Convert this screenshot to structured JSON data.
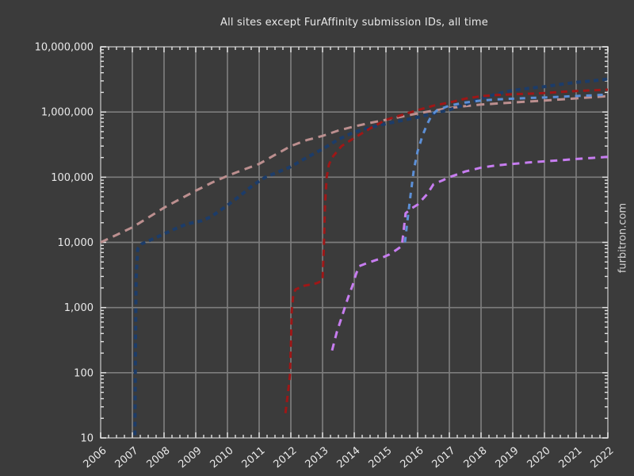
{
  "title": "All sites except FurAffinity submission IDs, all time",
  "watermark": "furbitron.com",
  "colors": {
    "background": "#3b3b3b",
    "grid": "#7d7d7d",
    "spine": "#969696",
    "tick": "#e4e4e4",
    "text": "#e9e9e9",
    "watermark": "#d2d2d2"
  },
  "chart_data": {
    "type": "line",
    "title": "All sites except FurAffinity submission IDs, all time",
    "xlabel": "",
    "ylabel": "",
    "grid": true,
    "legend_position": "none",
    "x_scale": "linear",
    "y_scale": "log",
    "xlim": [
      2006,
      2022
    ],
    "ylim": [
      10,
      10000000
    ],
    "x_ticks": [
      {
        "label": "2006",
        "value": 2006
      },
      {
        "label": "2007",
        "value": 2007
      },
      {
        "label": "2008",
        "value": 2008
      },
      {
        "label": "2009",
        "value": 2009
      },
      {
        "label": "2010",
        "value": 2010
      },
      {
        "label": "2011",
        "value": 2011
      },
      {
        "label": "2012",
        "value": 2012
      },
      {
        "label": "2013",
        "value": 2013
      },
      {
        "label": "2014",
        "value": 2014
      },
      {
        "label": "2015",
        "value": 2015
      },
      {
        "label": "2016",
        "value": 2016
      },
      {
        "label": "2017",
        "value": 2017
      },
      {
        "label": "2018",
        "value": 2018
      },
      {
        "label": "2019",
        "value": 2019
      },
      {
        "label": "2020",
        "value": 2020
      },
      {
        "label": "2021",
        "value": 2021
      },
      {
        "label": "2022",
        "value": 2022
      }
    ],
    "y_ticks": [
      {
        "label": "10",
        "value": 10
      },
      {
        "label": "100",
        "value": 100
      },
      {
        "label": "1,000",
        "value": 1000
      },
      {
        "label": "10,000",
        "value": 10000
      },
      {
        "label": "100,000",
        "value": 100000
      },
      {
        "label": "1,000,000",
        "value": 1000000
      },
      {
        "label": "10,000,000",
        "value": 10000000
      }
    ],
    "series": [
      {
        "name": "rosybrown-dashed",
        "color": "#bc8f8f",
        "style": "dashed",
        "dash": "10 7",
        "width": 3,
        "points": [
          [
            2006,
            10000
          ],
          [
            2006.5,
            13000
          ],
          [
            2007,
            17000
          ],
          [
            2007.5,
            24000
          ],
          [
            2008,
            34000
          ],
          [
            2008.5,
            46000
          ],
          [
            2009,
            62000
          ],
          [
            2009.5,
            82000
          ],
          [
            2010,
            105000
          ],
          [
            2010.5,
            130000
          ],
          [
            2011,
            160000
          ],
          [
            2011.5,
            220000
          ],
          [
            2012,
            300000
          ],
          [
            2012.5,
            370000
          ],
          [
            2013,
            430000
          ],
          [
            2013.5,
            520000
          ],
          [
            2014,
            600000
          ],
          [
            2014.5,
            680000
          ],
          [
            2015,
            760000
          ],
          [
            2015.5,
            850000
          ],
          [
            2016,
            950000
          ],
          [
            2016.5,
            1050000
          ],
          [
            2017,
            1150000
          ],
          [
            2017.5,
            1230000
          ],
          [
            2018,
            1300000
          ],
          [
            2019,
            1400000
          ],
          [
            2020,
            1500000
          ],
          [
            2021,
            1620000
          ],
          [
            2022,
            1750000
          ]
        ]
      },
      {
        "name": "darkblue-dashed",
        "color": "#1c3c69",
        "style": "dashed",
        "dash": "6 5",
        "width": 4,
        "points": [
          [
            2007.08,
            11
          ],
          [
            2007.1,
            300
          ],
          [
            2007.12,
            3000
          ],
          [
            2007.17,
            8000
          ],
          [
            2007.3,
            9500
          ],
          [
            2007.6,
            11000
          ],
          [
            2008,
            13500
          ],
          [
            2008.4,
            16500
          ],
          [
            2008.7,
            19000
          ],
          [
            2009,
            20500
          ],
          [
            2009.2,
            21500
          ],
          [
            2009.5,
            25000
          ],
          [
            2010,
            37000
          ],
          [
            2010.4,
            52000
          ],
          [
            2010.8,
            75000
          ],
          [
            2011.2,
            100000
          ],
          [
            2011.6,
            120000
          ],
          [
            2012,
            145000
          ],
          [
            2012.5,
            200000
          ],
          [
            2013,
            270000
          ],
          [
            2013.5,
            380000
          ],
          [
            2014,
            490000
          ],
          [
            2014.5,
            580000
          ],
          [
            2015,
            660000
          ],
          [
            2015.5,
            740000
          ],
          [
            2016,
            830000
          ],
          [
            2016.5,
            950000
          ],
          [
            2017,
            1080000
          ],
          [
            2017.5,
            1300000
          ],
          [
            2018,
            1600000
          ],
          [
            2018.5,
            1900000
          ],
          [
            2019,
            2150000
          ],
          [
            2019.5,
            2300000
          ],
          [
            2020,
            2450000
          ],
          [
            2020.5,
            2650000
          ],
          [
            2021,
            2850000
          ],
          [
            2021.5,
            3000000
          ],
          [
            2022,
            3200000
          ]
        ]
      },
      {
        "name": "darkred-dashed",
        "color": "#9e1717",
        "style": "dashed",
        "dash": "8 6",
        "width": 3,
        "points": [
          [
            2011.83,
            24
          ],
          [
            2011.9,
            45
          ],
          [
            2011.97,
            90
          ],
          [
            2012.0,
            250
          ],
          [
            2012.03,
            900
          ],
          [
            2012.08,
            1600
          ],
          [
            2012.15,
            1900
          ],
          [
            2012.4,
            2150
          ],
          [
            2012.8,
            2350
          ],
          [
            2013.0,
            2600
          ],
          [
            2013.04,
            8000
          ],
          [
            2013.08,
            40000
          ],
          [
            2013.13,
            100000
          ],
          [
            2013.2,
            155000
          ],
          [
            2013.3,
            200000
          ],
          [
            2013.6,
            300000
          ],
          [
            2014,
            400000
          ],
          [
            2014.5,
            560000
          ],
          [
            2015,
            760000
          ],
          [
            2015.5,
            900000
          ],
          [
            2016,
            1070000
          ],
          [
            2016.5,
            1250000
          ],
          [
            2017,
            1400000
          ],
          [
            2017.5,
            1600000
          ],
          [
            2018,
            1750000
          ],
          [
            2018.5,
            1820000
          ],
          [
            2019,
            1870000
          ],
          [
            2019.5,
            1910000
          ],
          [
            2020,
            1950000
          ],
          [
            2020.5,
            2030000
          ],
          [
            2021,
            2100000
          ],
          [
            2021.5,
            2150000
          ],
          [
            2022,
            2200000
          ]
        ]
      },
      {
        "name": "cornflower-dashed",
        "color": "#5c8fd6",
        "style": "dashed",
        "dash": "7 7",
        "width": 3,
        "points": [
          [
            2015.6,
            10000
          ],
          [
            2015.68,
            22000
          ],
          [
            2015.78,
            55000
          ],
          [
            2015.88,
            130000
          ],
          [
            2016.0,
            250000
          ],
          [
            2016.15,
            430000
          ],
          [
            2016.3,
            650000
          ],
          [
            2016.45,
            900000
          ],
          [
            2016.6,
            1050000
          ],
          [
            2016.8,
            1150000
          ],
          [
            2017,
            1250000
          ],
          [
            2017.5,
            1400000
          ],
          [
            2018,
            1500000
          ],
          [
            2018.5,
            1560000
          ],
          [
            2019,
            1600000
          ],
          [
            2019.5,
            1640000
          ],
          [
            2020,
            1670000
          ],
          [
            2020.5,
            1710000
          ],
          [
            2021,
            1760000
          ],
          [
            2021.5,
            1800000
          ],
          [
            2022,
            1850000
          ]
        ]
      },
      {
        "name": "violet-dashed",
        "color": "#c77df0",
        "style": "dashed",
        "dash": "9 7",
        "width": 3,
        "points": [
          [
            2013.3,
            220
          ],
          [
            2013.45,
            420
          ],
          [
            2013.6,
            700
          ],
          [
            2013.8,
            1400
          ],
          [
            2013.95,
            2200
          ],
          [
            2014.05,
            3200
          ],
          [
            2014.15,
            4300
          ],
          [
            2014.4,
            4800
          ],
          [
            2014.8,
            5600
          ],
          [
            2015.1,
            6500
          ],
          [
            2015.35,
            7800
          ],
          [
            2015.5,
            8800
          ],
          [
            2015.55,
            14000
          ],
          [
            2015.62,
            28000
          ],
          [
            2015.8,
            33000
          ],
          [
            2016.0,
            38000
          ],
          [
            2016.3,
            55000
          ],
          [
            2016.5,
            78000
          ],
          [
            2016.8,
            90000
          ],
          [
            2017,
            100000
          ],
          [
            2017.5,
            122000
          ],
          [
            2018,
            140000
          ],
          [
            2018.5,
            152000
          ],
          [
            2019,
            160000
          ],
          [
            2019.5,
            168000
          ],
          [
            2020,
            175000
          ],
          [
            2020.5,
            182000
          ],
          [
            2021,
            190000
          ],
          [
            2021.5,
            197000
          ],
          [
            2022,
            205000
          ]
        ]
      }
    ]
  }
}
